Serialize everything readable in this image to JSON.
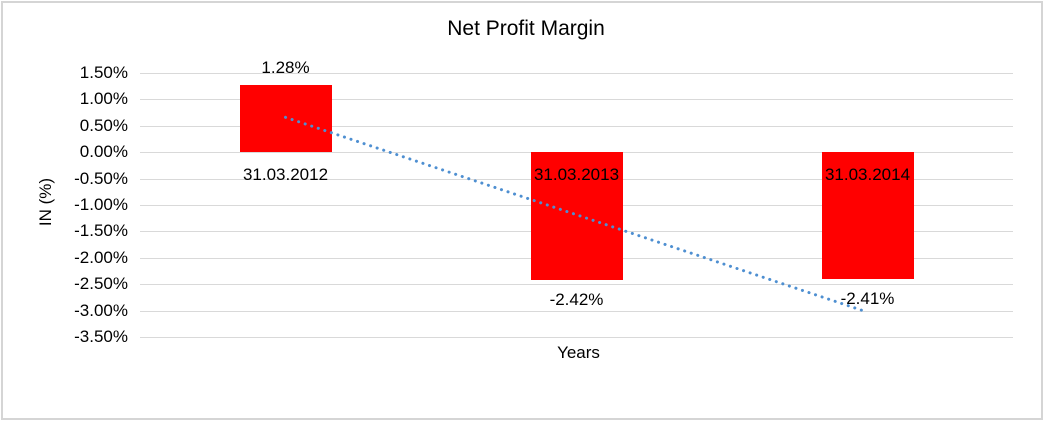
{
  "chart_data": {
    "type": "bar",
    "title": "Net Profit Margin",
    "categories": [
      "31.03.2012",
      "31.03.2013",
      "31.03.2014"
    ],
    "values": [
      1.28,
      -2.42,
      -2.41
    ],
    "data_labels": [
      "1.28%",
      "-2.42%",
      "-2.41%"
    ],
    "xlabel": "Years",
    "ylabel": "IN (%)",
    "ylim": [
      -3.5,
      1.5
    ],
    "ytick_values": [
      1.5,
      1.0,
      0.5,
      0.0,
      -0.5,
      -1.0,
      -1.5,
      -2.0,
      -2.5,
      -3.0,
      -3.5
    ],
    "ytick_labels": [
      "1.50%",
      "1.00%",
      "0.50%",
      "0.00%",
      "-0.50%",
      "-1.00%",
      "-1.50%",
      "-2.00%",
      "-2.50%",
      "-3.00%",
      "-3.50%"
    ],
    "grid": true,
    "legend_position": "none",
    "bar_color": "#ff0000",
    "gridline_color": "#d9d9d9",
    "frame_border_color": "#d5d5d5",
    "text_color": "#000000",
    "trendline": {
      "type": "linear",
      "style": "dotted",
      "color": "#4e8fd1",
      "start_value": 0.66,
      "end_value": -3.03
    }
  }
}
